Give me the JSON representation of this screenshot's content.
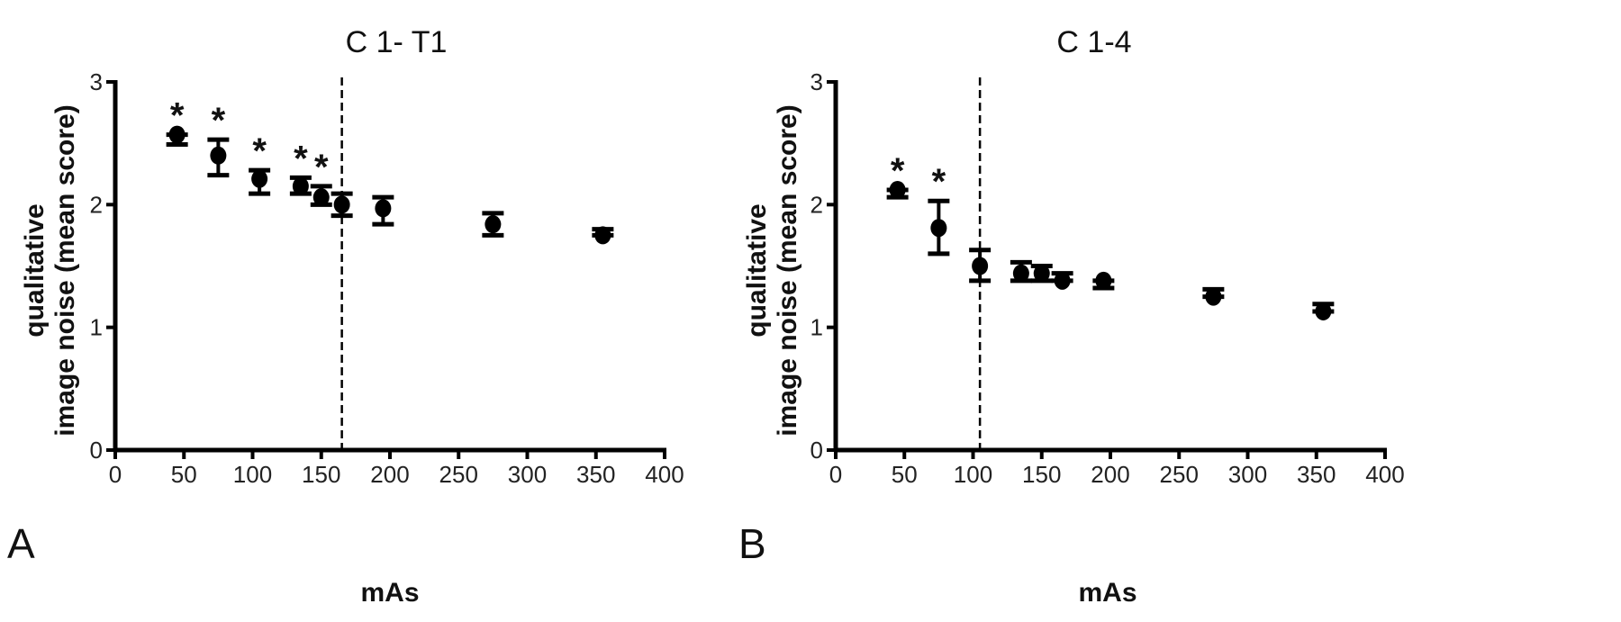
{
  "chart_data": [
    {
      "type": "scatter",
      "panel_label": "A",
      "title": "C 1- T1",
      "xlabel": "mAs",
      "ylabel": [
        "qualitative",
        "image noise (mean score)"
      ],
      "xlim": [
        0,
        400
      ],
      "ylim": [
        0,
        3
      ],
      "xticks": [
        0,
        50,
        100,
        150,
        200,
        250,
        300,
        350,
        400
      ],
      "yticks": [
        0,
        1,
        2,
        3
      ],
      "grid": false,
      "reference_line_x": 165,
      "series": [
        {
          "name": "mean score",
          "points": [
            {
              "x": 45,
              "y": 2.57,
              "err_low": 2.49,
              "err_high": 2.57,
              "significant": true
            },
            {
              "x": 75,
              "y": 2.4,
              "err_low": 2.24,
              "err_high": 2.53,
              "significant": true
            },
            {
              "x": 105,
              "y": 2.21,
              "err_low": 2.09,
              "err_high": 2.28,
              "significant": true
            },
            {
              "x": 135,
              "y": 2.15,
              "err_low": 2.09,
              "err_high": 2.22,
              "significant": true
            },
            {
              "x": 150,
              "y": 2.06,
              "err_low": 2.0,
              "err_high": 2.15,
              "significant": true
            },
            {
              "x": 165,
              "y": 2.0,
              "err_low": 1.91,
              "err_high": 2.09,
              "significant": false
            },
            {
              "x": 195,
              "y": 1.97,
              "err_low": 1.84,
              "err_high": 2.06,
              "significant": false
            },
            {
              "x": 275,
              "y": 1.84,
              "err_low": 1.75,
              "err_high": 1.93,
              "significant": false
            },
            {
              "x": 355,
              "y": 1.75,
              "err_low": 1.75,
              "err_high": 1.8,
              "significant": false
            }
          ]
        }
      ],
      "annotation": "*"
    },
    {
      "type": "scatter",
      "panel_label": "B",
      "title": "C 1-4",
      "xlabel": "mAs",
      "ylabel": [
        "qualitative",
        "image noise (mean score)"
      ],
      "xlim": [
        0,
        400
      ],
      "ylim": [
        0,
        3
      ],
      "xticks": [
        0,
        50,
        100,
        150,
        200,
        250,
        300,
        350,
        400
      ],
      "yticks": [
        0,
        1,
        2,
        3
      ],
      "grid": false,
      "reference_line_x": 105,
      "series": [
        {
          "name": "mean score",
          "points": [
            {
              "x": 45,
              "y": 2.12,
              "err_low": 2.06,
              "err_high": 2.12,
              "significant": true
            },
            {
              "x": 75,
              "y": 1.81,
              "err_low": 1.6,
              "err_high": 2.03,
              "significant": true
            },
            {
              "x": 105,
              "y": 1.5,
              "err_low": 1.38,
              "err_high": 1.63,
              "significant": false
            },
            {
              "x": 135,
              "y": 1.44,
              "err_low": 1.38,
              "err_high": 1.53,
              "significant": false
            },
            {
              "x": 150,
              "y": 1.44,
              "err_low": 1.38,
              "err_high": 1.5,
              "significant": false
            },
            {
              "x": 165,
              "y": 1.38,
              "err_low": 1.38,
              "err_high": 1.44,
              "significant": false
            },
            {
              "x": 195,
              "y": 1.38,
              "err_low": 1.32,
              "err_high": 1.38,
              "significant": false
            },
            {
              "x": 275,
              "y": 1.25,
              "err_low": 1.25,
              "err_high": 1.31,
              "significant": false
            },
            {
              "x": 355,
              "y": 1.13,
              "err_low": 1.13,
              "err_high": 1.19,
              "significant": false
            }
          ]
        }
      ],
      "annotation": "*"
    }
  ]
}
